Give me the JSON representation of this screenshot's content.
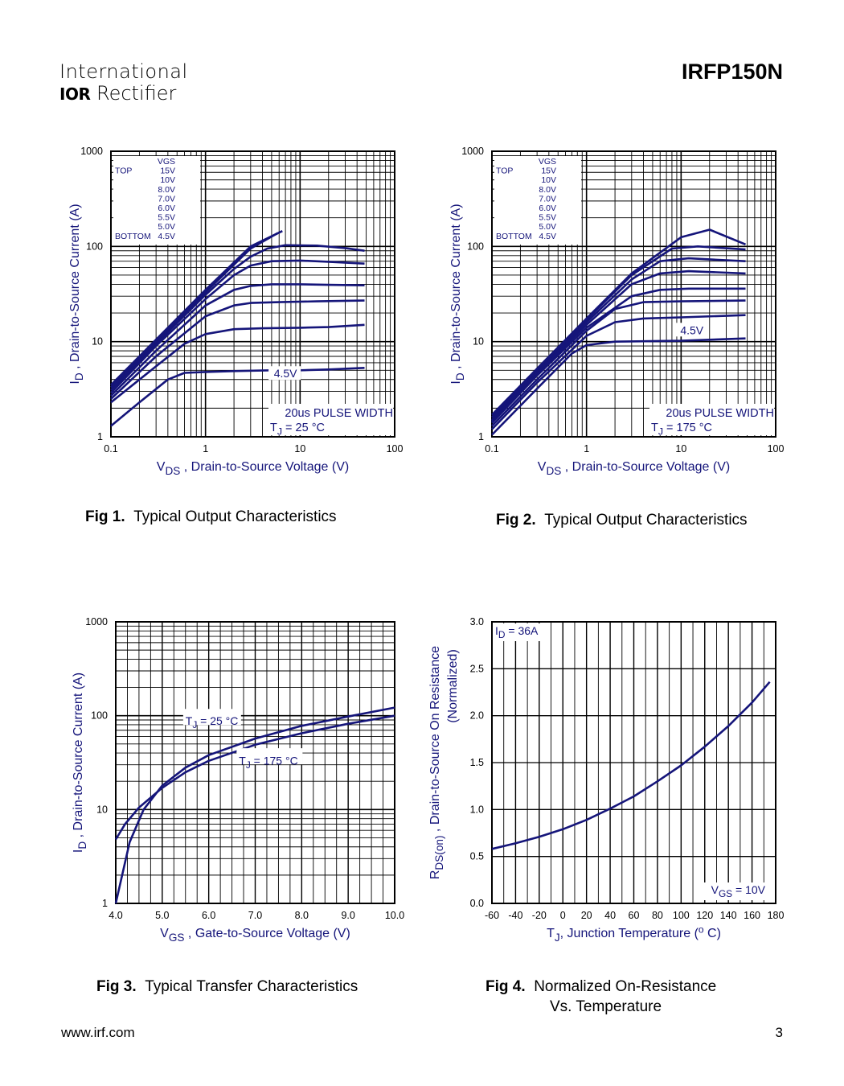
{
  "header": {
    "logo_line1": "International",
    "logo_mark": "IOR",
    "logo_line2": "Rectifier",
    "part_number": "IRFP150N"
  },
  "footer": {
    "url": "www.irf.com",
    "page_number": "3"
  },
  "captions": {
    "fig1_num": "Fig 1.",
    "fig1_title": "Typical Output Characteristics",
    "fig2_num": "Fig 2.",
    "fig2_title": "Typical Output Characteristics",
    "fig3_num": "Fig 3.",
    "fig3_title": "Typical Transfer Characteristics",
    "fig4_num": "Fig 4.",
    "fig4_title_line1": "Normalized On-Resistance",
    "fig4_title_line2": "Vs. Temperature"
  },
  "chart_data": [
    {
      "id": "fig1",
      "type": "line",
      "title": "Typical Output Characteristics",
      "xscale": "log",
      "yscale": "log",
      "xlim": [
        0.1,
        100
      ],
      "ylim": [
        1,
        1000
      ],
      "xticks": [
        "0.1",
        "1",
        "10",
        "100"
      ],
      "yticks": [
        "1",
        "10",
        "100",
        "1000"
      ],
      "xlabel": {
        "pre": "V",
        "sub": "DS",
        "post": " , Drain-to-Source Voltage (V)"
      },
      "ylabel": {
        "pre": "I",
        "sub": "D",
        "post": " ,  Drain-to-Source Current (A)"
      },
      "legend": {
        "header": "VGS",
        "top_label": "TOP",
        "bottom_label": "BOTTOM",
        "values": [
          "15V",
          "10V",
          "8.0V",
          "7.0V",
          "6.0V",
          "5.5V",
          "5.0V",
          "4.5V"
        ]
      },
      "annotation_curve": "4.5V",
      "annotation_line1": "20us PULSE WIDTH",
      "annotation_line2": {
        "pre": "T",
        "sub": "J",
        "post": " = 25 °C"
      },
      "series": [
        {
          "name": "15V",
          "x": [
            0.1,
            0.3,
            1,
            3,
            6.5
          ],
          "y": [
            3.5,
            10.5,
            35,
            100,
            145
          ]
        },
        {
          "name": "10V",
          "x": [
            0.1,
            0.3,
            1,
            3,
            5.8
          ],
          "y": [
            3.3,
            10,
            33,
            95,
            138
          ]
        },
        {
          "name": "8.0V",
          "x": [
            0.1,
            0.3,
            1,
            2,
            3,
            4.5,
            7,
            15,
            30,
            48
          ],
          "y": [
            3.1,
            9.5,
            31,
            58,
            78,
            95,
            103,
            102,
            96,
            90
          ]
        },
        {
          "name": "7.0V",
          "x": [
            0.1,
            0.3,
            1,
            2,
            3,
            5,
            10,
            20,
            48
          ],
          "y": [
            2.9,
            9,
            28,
            50,
            63,
            70,
            71,
            69,
            66
          ]
        },
        {
          "name": "6.0V",
          "x": [
            0.1,
            0.3,
            1,
            2,
            3,
            5,
            10,
            20,
            48
          ],
          "y": [
            2.7,
            8,
            24,
            35,
            38.5,
            40,
            40,
            39.5,
            39
          ]
        },
        {
          "name": "5.5V",
          "x": [
            0.1,
            0.3,
            1,
            2,
            3,
            6,
            15,
            48
          ],
          "y": [
            2.5,
            7,
            18.5,
            24,
            25.5,
            26,
            26.5,
            27
          ]
        },
        {
          "name": "5.0V",
          "x": [
            0.1,
            0.3,
            0.6,
            1,
            2,
            4,
            10,
            20,
            48
          ],
          "y": [
            2.3,
            5.5,
            9.5,
            12,
            13.5,
            13.8,
            14,
            14.2,
            15
          ]
        },
        {
          "name": "4.5V",
          "x": [
            0.1,
            0.2,
            0.4,
            0.6,
            1,
            2,
            5,
            10,
            20,
            48
          ],
          "y": [
            1.3,
            2.3,
            4,
            4.7,
            4.8,
            4.9,
            5,
            5,
            5.1,
            5.3
          ]
        }
      ]
    },
    {
      "id": "fig2",
      "type": "line",
      "title": "Typical Output Characteristics",
      "xscale": "log",
      "yscale": "log",
      "xlim": [
        0.1,
        100
      ],
      "ylim": [
        1,
        1000
      ],
      "xticks": [
        "0.1",
        "1",
        "10",
        "100"
      ],
      "yticks": [
        "1",
        "10",
        "100",
        "1000"
      ],
      "xlabel": {
        "pre": "V",
        "sub": "DS",
        "post": " , Drain-to-Source Voltage (V)"
      },
      "ylabel": {
        "pre": "I",
        "sub": "D",
        "post": " ,  Drain-to-Source Current (A)"
      },
      "legend": {
        "header": "VGS",
        "top_label": "TOP",
        "bottom_label": "BOTTOM",
        "values": [
          "15V",
          "10V",
          "8.0V",
          "7.0V",
          "6.0V",
          "5.5V",
          "5.0V",
          "4.5V"
        ]
      },
      "annotation_curve": "4.5V",
      "annotation_line1": "20us PULSE WIDTH",
      "annotation_line2": {
        "pre": "T",
        "sub": "J",
        "post": " = 175 °C"
      },
      "series": [
        {
          "name": "15V",
          "x": [
            0.1,
            0.3,
            1,
            3,
            10,
            20,
            48
          ],
          "y": [
            1.7,
            5.2,
            17.5,
            52,
            125,
            150,
            105
          ]
        },
        {
          "name": "10V",
          "x": [
            0.1,
            0.3,
            1,
            3,
            8,
            15,
            48
          ],
          "y": [
            1.6,
            5,
            17,
            50,
            95,
            100,
            93
          ]
        },
        {
          "name": "8.0V",
          "x": [
            0.1,
            0.3,
            1,
            3,
            6,
            12,
            48
          ],
          "y": [
            1.5,
            4.8,
            16,
            45,
            70,
            75,
            70
          ]
        },
        {
          "name": "7.0V",
          "x": [
            0.1,
            0.3,
            1,
            3,
            6,
            12,
            48
          ],
          "y": [
            1.45,
            4.6,
            15,
            40,
            52,
            55,
            52
          ]
        },
        {
          "name": "6.0V",
          "x": [
            0.1,
            0.3,
            1,
            3,
            6,
            12,
            48
          ],
          "y": [
            1.4,
            4.4,
            14,
            30,
            35,
            36,
            36
          ]
        },
        {
          "name": "5.5V",
          "x": [
            0.1,
            0.3,
            1,
            2,
            4,
            10,
            48
          ],
          "y": [
            1.3,
            4,
            13,
            22,
            26,
            26.5,
            27
          ]
        },
        {
          "name": "5.0V",
          "x": [
            0.1,
            0.3,
            1,
            2,
            4,
            10,
            48
          ],
          "y": [
            1.2,
            3.7,
            11.5,
            16,
            17.5,
            18,
            19
          ]
        },
        {
          "name": "4.5V",
          "x": [
            0.1,
            0.3,
            0.7,
            1,
            2,
            10,
            48
          ],
          "y": [
            1.05,
            3.2,
            7.5,
            9.2,
            10,
            10.2,
            10.8
          ]
        }
      ]
    },
    {
      "id": "fig3",
      "type": "line",
      "title": "Typical Transfer Characteristics",
      "xscale": "linear",
      "yscale": "log",
      "xlim": [
        4.0,
        10.0
      ],
      "ylim": [
        1,
        1000
      ],
      "xticks": [
        "4.0",
        "5.0",
        "6.0",
        "7.0",
        "8.0",
        "9.0",
        "10.0"
      ],
      "yticks": [
        "1",
        "10",
        "100",
        "1000"
      ],
      "xlabel": {
        "pre": "V",
        "sub": "GS",
        "post": " , Gate-to-Source Voltage (V)"
      },
      "ylabel": {
        "pre": "I",
        "sub": "D",
        "post": " ,  Drain-to-Source Current (A)"
      },
      "series": [
        {
          "name": "TJ = 25 °C",
          "label_pre": "T",
          "label_sub": "J",
          "label_post": " = 25 °C",
          "x": [
            4.0,
            4.3,
            4.6,
            5.0,
            5.5,
            6.0,
            7.0,
            8.0,
            9.0,
            10.0
          ],
          "y": [
            1.0,
            4.5,
            10,
            18,
            28,
            38,
            57,
            78,
            98,
            122
          ]
        },
        {
          "name": "TJ = 175 °C",
          "label_pre": "T",
          "label_sub": "J",
          "label_post": " = 175 °C",
          "x": [
            4.0,
            4.2,
            4.5,
            5.0,
            5.5,
            6.0,
            7.0,
            8.0,
            9.0,
            10.0
          ],
          "y": [
            4.8,
            7,
            10.5,
            17,
            25,
            33,
            49,
            65,
            82,
            100
          ]
        }
      ]
    },
    {
      "id": "fig4",
      "type": "line",
      "title": "Normalized On-Resistance Vs. Temperature",
      "xscale": "linear",
      "yscale": "linear",
      "xlim": [
        -60,
        180
      ],
      "ylim": [
        0.0,
        3.0
      ],
      "xticks": [
        "-60",
        "-40",
        "-20",
        "0",
        "20",
        "40",
        "60",
        "80",
        "100",
        "120",
        "140",
        "160",
        "180"
      ],
      "yticks": [
        "0.0",
        "0.5",
        "1.0",
        "1.5",
        "2.0",
        "2.5",
        "3.0"
      ],
      "xlabel": {
        "pre": "T",
        "sub": "J",
        "post": ", Junction Temperature (",
        "sup": "o",
        "post2": " C)"
      },
      "ylabel_line1": {
        "pre": "R",
        "sub": "DS(on)",
        "post": " ,  Drain-to-Source On Resistance"
      },
      "ylabel_line2": "(Normalized)",
      "annotation_top": {
        "pre": "I",
        "sub": "D",
        "post": " = 36A"
      },
      "annotation_bottom": {
        "pre": "V",
        "sub": "GS",
        "post": " = 10V"
      },
      "series": [
        {
          "name": "RDS(on) normalized",
          "x": [
            -60,
            -40,
            -20,
            0,
            20,
            40,
            60,
            80,
            100,
            120,
            140,
            160,
            175
          ],
          "y": [
            0.58,
            0.64,
            0.71,
            0.79,
            0.89,
            1.01,
            1.14,
            1.3,
            1.47,
            1.67,
            1.89,
            2.14,
            2.36
          ]
        }
      ]
    }
  ]
}
